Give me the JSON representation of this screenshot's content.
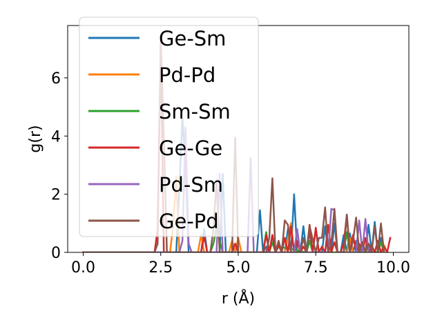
{
  "chart_data": {
    "type": "line",
    "xlabel": "r (Å)",
    "ylabel": "g(r)",
    "xlim": [
      -0.5,
      10.5
    ],
    "ylim": [
      0,
      7.8
    ],
    "xticks": [
      "0.0",
      "2.5",
      "5.0",
      "7.5",
      "10.0"
    ],
    "xtick_values": [
      0.0,
      2.5,
      5.0,
      7.5,
      10.0
    ],
    "yticks": [
      "0",
      "2",
      "4",
      "6"
    ],
    "ytick_values": [
      0,
      2,
      4,
      6
    ],
    "grid": false,
    "legend_position": "upper-left",
    "series": [
      {
        "name": "Ge-Sm",
        "color": "#1f77b4",
        "x": [
          0.0,
          2.2,
          3.0,
          3.1,
          3.2,
          3.3,
          3.4,
          3.5,
          3.8,
          3.9,
          4.0,
          4.4,
          4.5,
          4.6,
          5.2,
          5.4,
          5.5,
          5.6,
          5.7,
          5.8,
          5.9,
          6.0,
          6.1,
          6.2,
          6.3,
          6.4,
          6.5,
          6.6,
          6.7,
          6.8,
          6.9,
          7.0,
          7.1,
          7.2,
          7.3,
          7.4,
          7.5,
          7.6,
          7.7,
          7.8,
          7.9,
          8.0,
          8.1,
          8.2,
          8.3,
          8.4,
          8.5,
          8.6,
          8.7,
          8.8,
          8.9,
          9.0,
          9.1,
          9.2,
          9.3,
          9.4,
          9.5,
          9.6,
          9.7
        ],
        "y": [
          0,
          0,
          0,
          2.2,
          4.6,
          3.0,
          0,
          0,
          0,
          0.8,
          0,
          0,
          2.7,
          0,
          0,
          0,
          0,
          0,
          1.45,
          0,
          0.2,
          0,
          0.6,
          0,
          0.35,
          0,
          0,
          0.8,
          0,
          2.0,
          0,
          0,
          0.9,
          0,
          0.7,
          0,
          0.8,
          0,
          0,
          0.9,
          0,
          0,
          1.0,
          0,
          0,
          0.6,
          0,
          0.65,
          0,
          0.4,
          0,
          0.3,
          0,
          0.95,
          0,
          1.05,
          0,
          0.5,
          0
        ]
      },
      {
        "name": "Pd-Pd",
        "color": "#ff7f0e",
        "x": [
          0.0,
          2.8,
          2.9,
          3.0,
          3.1,
          3.7,
          3.8,
          3.9,
          4.7,
          4.8,
          4.9,
          5.0,
          5.1,
          6.5,
          6.6,
          6.7,
          6.8,
          8.5,
          8.6,
          8.7,
          9.6,
          9.7,
          9.8
        ],
        "y": [
          0,
          0,
          0.9,
          2.6,
          0,
          0,
          0.6,
          0,
          0,
          0.4,
          0,
          0.5,
          0,
          0,
          0.5,
          1.0,
          0,
          0,
          0.5,
          0,
          0,
          0.25,
          0
        ]
      },
      {
        "name": "Sm-Sm",
        "color": "#2ca02c",
        "x": [
          0.0,
          4.1,
          4.2,
          4.3,
          4.4,
          4.5,
          5.8,
          5.9,
          6.0,
          6.1,
          6.2,
          6.3,
          7.2,
          7.3,
          7.4,
          8.4,
          8.5,
          8.6,
          9.5,
          9.6,
          9.7
        ],
        "y": [
          0,
          0,
          0.3,
          0.85,
          0.4,
          0,
          0,
          0.7,
          0,
          0.35,
          0,
          0.2,
          0,
          0.4,
          0,
          0,
          0.7,
          0,
          0,
          0.35,
          0
        ]
      },
      {
        "name": "Ge-Ge",
        "color": "#d62728",
        "x": [
          0.0,
          2.3,
          2.4,
          2.5,
          2.6,
          3.8,
          3.9,
          4.0,
          4.8,
          4.9,
          5.0,
          5.1,
          5.8,
          5.9,
          6.0,
          6.1,
          6.2,
          6.3,
          6.4,
          6.5,
          6.6,
          6.7,
          6.8,
          6.9,
          7.0,
          7.1,
          7.2,
          7.3,
          7.4,
          7.5,
          7.6,
          7.7,
          7.8,
          7.9,
          8.0,
          8.1,
          8.2,
          8.3,
          8.4,
          8.5,
          8.6,
          8.7,
          8.8,
          8.9,
          9.0,
          9.1,
          9.2,
          9.3,
          9.4,
          9.5,
          9.6,
          9.7,
          9.8,
          9.9
        ],
        "y": [
          0,
          0,
          0.8,
          7.2,
          0,
          0,
          0.55,
          0,
          0,
          0.3,
          0,
          0,
          0,
          0.6,
          0,
          0.6,
          0,
          0.25,
          0,
          0.5,
          0,
          0.9,
          0,
          0.4,
          0,
          0.2,
          0,
          0.95,
          0,
          0.85,
          0,
          0.2,
          0,
          0.95,
          0,
          0.35,
          0,
          0,
          0.3,
          1.3,
          0,
          0.6,
          0,
          0.3,
          0,
          0.5,
          0,
          0.25,
          0,
          0.4,
          0,
          0.2,
          0,
          0.5
        ]
      },
      {
        "name": "Pd-Sm",
        "color": "#9467bd",
        "x": [
          0.0,
          3.1,
          3.2,
          3.3,
          3.4,
          3.5,
          4.3,
          4.4,
          4.5,
          5.3,
          5.4,
          5.5,
          6.8,
          6.9,
          7.0,
          7.9,
          8.0,
          8.1,
          8.2,
          8.8,
          8.9,
          9.0,
          9.1,
          9.2
        ],
        "y": [
          0,
          0,
          0.4,
          4.3,
          0.3,
          0,
          0,
          2.7,
          0,
          0,
          3.25,
          0,
          0,
          0.8,
          0,
          0,
          1.5,
          1.45,
          0,
          0,
          1.1,
          0,
          1.15,
          0
        ]
      },
      {
        "name": "Ge-Pd",
        "color": "#8c564b",
        "x": [
          0.0,
          2.3,
          2.4,
          2.5,
          2.6,
          2.7,
          4.1,
          4.2,
          4.3,
          4.4,
          4.8,
          4.9,
          5.0,
          5.1,
          5.9,
          6.0,
          6.1,
          6.2,
          6.3,
          6.4,
          6.5,
          6.6,
          6.7,
          6.8,
          7.0,
          7.1,
          7.2,
          7.3,
          7.5,
          7.6,
          7.7,
          7.8,
          7.9,
          8.0,
          8.1,
          8.2,
          8.4,
          8.5,
          8.6,
          8.7,
          8.8,
          8.9,
          9.0,
          9.1,
          9.2,
          9.3,
          9.4,
          9.5,
          9.6,
          9.7
        ],
        "y": [
          0,
          0,
          0.3,
          7.3,
          4.0,
          0,
          0,
          0.8,
          2.5,
          0,
          0,
          3.95,
          0,
          0,
          0,
          0.5,
          2.55,
          0,
          0.4,
          0,
          1.1,
          0.95,
          0,
          0,
          0,
          0.5,
          0,
          0.9,
          0,
          0.5,
          0.5,
          1.55,
          0,
          0.3,
          1.5,
          0,
          0,
          1.3,
          0,
          0.4,
          1.2,
          0,
          0.35,
          0,
          0.3,
          0,
          0.9,
          0,
          1.0,
          0
        ]
      }
    ]
  }
}
